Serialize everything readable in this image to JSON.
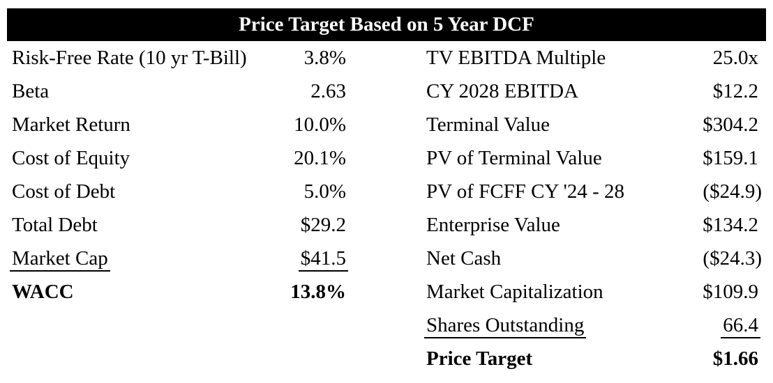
{
  "header": {
    "title": "Price Target Based on 5 Year DCF"
  },
  "left_rows": [
    {
      "label": "Risk-Free Rate (10 yr T-Bill)",
      "value": "3.8%"
    },
    {
      "label": "Beta",
      "value": "2.63"
    },
    {
      "label": "Market Return",
      "value": "10.0%"
    },
    {
      "label": "Cost of Equity",
      "value": "20.1%"
    },
    {
      "label": "Cost of Debt",
      "value": "5.0%"
    },
    {
      "label": "Total Debt",
      "value": "$29.2"
    },
    {
      "label": "Market Cap",
      "value": "$41.5"
    },
    {
      "label": "WACC",
      "value": "13.8%"
    }
  ],
  "right_rows": [
    {
      "label": "TV EBITDA Multiple",
      "value": "25.0x"
    },
    {
      "label": "CY 2028 EBITDA",
      "value": "$12.2"
    },
    {
      "label": "Terminal Value",
      "value": "$304.2"
    },
    {
      "label": "PV of Terminal Value",
      "value": "$159.1"
    },
    {
      "label": "PV of FCFF CY '24 - 28",
      "value": "($24.9)"
    },
    {
      "label": "Enterprise Value",
      "value": "$134.2"
    },
    {
      "label": "Net Cash",
      "value": "($24.3)"
    },
    {
      "label": "Market Capitalization",
      "value": "$109.9"
    },
    {
      "label": "Shares Outstanding",
      "value": "66.4"
    },
    {
      "label": "Price Target",
      "value": "$1.66"
    }
  ],
  "colors": {
    "header_bg": "#000000",
    "header_text": "#ffffff",
    "body_text": "#000000",
    "background": "#ffffff"
  }
}
